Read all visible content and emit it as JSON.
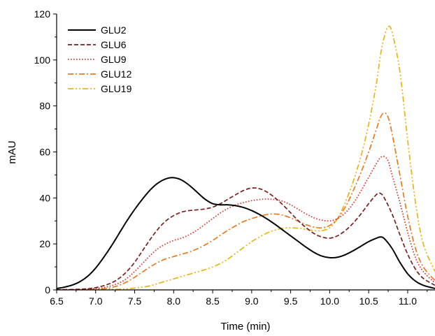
{
  "chart_data": {
    "type": "line",
    "xlabel": "Time (min)",
    "ylabel": "mAU",
    "xlim": [
      6.5,
      11.35
    ],
    "ylim": [
      0,
      120
    ],
    "xticks": [
      "6.5",
      "7.0",
      "7.5",
      "8.0",
      "8.5",
      "9.0",
      "9.5",
      "10.0",
      "10.5",
      "11.0"
    ],
    "yticks": [
      "0",
      "20",
      "40",
      "60",
      "80",
      "100",
      "120"
    ],
    "legend_position": "top-left",
    "grid": false,
    "series": [
      {
        "name": "GLU2",
        "color": "#000000",
        "dash": "solid",
        "points": [
          [
            6.5,
            0.6
          ],
          [
            6.6,
            1.2
          ],
          [
            6.7,
            2.1
          ],
          [
            6.8,
            3.6
          ],
          [
            6.9,
            6.0
          ],
          [
            7.0,
            9.5
          ],
          [
            7.1,
            14.0
          ],
          [
            7.2,
            19.0
          ],
          [
            7.3,
            24.5
          ],
          [
            7.4,
            30.0
          ],
          [
            7.5,
            35.0
          ],
          [
            7.6,
            39.5
          ],
          [
            7.7,
            43.5
          ],
          [
            7.8,
            46.5
          ],
          [
            7.9,
            48.3
          ],
          [
            8.0,
            48.8
          ],
          [
            8.1,
            47.8
          ],
          [
            8.2,
            45.5
          ],
          [
            8.3,
            42.5
          ],
          [
            8.4,
            39.5
          ],
          [
            8.5,
            37.5
          ],
          [
            8.6,
            37.0
          ],
          [
            8.7,
            37.0
          ],
          [
            8.8,
            36.6
          ],
          [
            8.9,
            35.8
          ],
          [
            9.0,
            34.5
          ],
          [
            9.1,
            32.8
          ],
          [
            9.2,
            30.8
          ],
          [
            9.3,
            28.5
          ],
          [
            9.4,
            26.0
          ],
          [
            9.5,
            23.5
          ],
          [
            9.6,
            21.0
          ],
          [
            9.7,
            18.5
          ],
          [
            9.8,
            16.3
          ],
          [
            9.9,
            14.7
          ],
          [
            10.0,
            14.0
          ],
          [
            10.1,
            14.2
          ],
          [
            10.2,
            15.3
          ],
          [
            10.3,
            17.0
          ],
          [
            10.4,
            19.0
          ],
          [
            10.5,
            21.0
          ],
          [
            10.6,
            22.5
          ],
          [
            10.65,
            23.0
          ],
          [
            10.7,
            22.3
          ],
          [
            10.8,
            18.0
          ],
          [
            10.9,
            12.0
          ],
          [
            11.0,
            7.0
          ],
          [
            11.1,
            3.8
          ],
          [
            11.2,
            2.0
          ],
          [
            11.35,
            0.6
          ]
        ]
      },
      {
        "name": "GLU6",
        "color": "#7b1f1f",
        "dash": "dash",
        "points": [
          [
            6.5,
            0.1
          ],
          [
            6.7,
            0.2
          ],
          [
            6.9,
            0.5
          ],
          [
            7.0,
            1.0
          ],
          [
            7.1,
            1.8
          ],
          [
            7.2,
            3.0
          ],
          [
            7.3,
            5.0
          ],
          [
            7.4,
            8.0
          ],
          [
            7.5,
            12.0
          ],
          [
            7.6,
            17.0
          ],
          [
            7.7,
            22.0
          ],
          [
            7.8,
            26.5
          ],
          [
            7.9,
            30.0
          ],
          [
            8.0,
            32.3
          ],
          [
            8.1,
            33.8
          ],
          [
            8.2,
            34.5
          ],
          [
            8.3,
            34.8
          ],
          [
            8.4,
            35.2
          ],
          [
            8.5,
            36.0
          ],
          [
            8.6,
            37.5
          ],
          [
            8.7,
            39.5
          ],
          [
            8.8,
            41.5
          ],
          [
            8.9,
            43.3
          ],
          [
            9.0,
            44.3
          ],
          [
            9.1,
            44.0
          ],
          [
            9.2,
            42.5
          ],
          [
            9.3,
            40.0
          ],
          [
            9.4,
            37.0
          ],
          [
            9.5,
            33.5
          ],
          [
            9.6,
            30.0
          ],
          [
            9.7,
            27.0
          ],
          [
            9.8,
            24.5
          ],
          [
            9.9,
            23.0
          ],
          [
            10.0,
            22.5
          ],
          [
            10.1,
            23.5
          ],
          [
            10.2,
            25.8
          ],
          [
            10.3,
            29.0
          ],
          [
            10.4,
            33.0
          ],
          [
            10.5,
            37.5
          ],
          [
            10.6,
            41.5
          ],
          [
            10.65,
            42.0
          ],
          [
            10.7,
            40.0
          ],
          [
            10.8,
            33.0
          ],
          [
            10.9,
            24.0
          ],
          [
            11.0,
            15.5
          ],
          [
            11.1,
            9.0
          ],
          [
            11.2,
            5.0
          ],
          [
            11.35,
            2.0
          ]
        ]
      },
      {
        "name": "GLU9",
        "color": "#d2352b",
        "dash": "dot",
        "points": [
          [
            6.5,
            0.0
          ],
          [
            6.8,
            0.2
          ],
          [
            7.0,
            0.6
          ],
          [
            7.1,
            1.0
          ],
          [
            7.2,
            1.8
          ],
          [
            7.3,
            3.0
          ],
          [
            7.4,
            5.0
          ],
          [
            7.5,
            8.0
          ],
          [
            7.6,
            11.5
          ],
          [
            7.7,
            15.0
          ],
          [
            7.8,
            18.0
          ],
          [
            7.9,
            20.0
          ],
          [
            8.0,
            21.5
          ],
          [
            8.1,
            22.5
          ],
          [
            8.2,
            24.0
          ],
          [
            8.3,
            26.0
          ],
          [
            8.4,
            28.5
          ],
          [
            8.5,
            31.0
          ],
          [
            8.6,
            33.5
          ],
          [
            8.7,
            35.5
          ],
          [
            8.8,
            37.0
          ],
          [
            8.9,
            38.0
          ],
          [
            9.0,
            38.8
          ],
          [
            9.1,
            39.3
          ],
          [
            9.2,
            39.5
          ],
          [
            9.3,
            39.3
          ],
          [
            9.4,
            38.5
          ],
          [
            9.5,
            37.0
          ],
          [
            9.6,
            35.0
          ],
          [
            9.7,
            33.0
          ],
          [
            9.8,
            31.3
          ],
          [
            9.9,
            30.3
          ],
          [
            10.0,
            30.0
          ],
          [
            10.1,
            31.0
          ],
          [
            10.2,
            33.5
          ],
          [
            10.3,
            37.5
          ],
          [
            10.4,
            43.0
          ],
          [
            10.5,
            49.0
          ],
          [
            10.6,
            55.0
          ],
          [
            10.65,
            57.5
          ],
          [
            10.7,
            58.0
          ],
          [
            10.75,
            56.0
          ],
          [
            10.8,
            50.0
          ],
          [
            10.9,
            38.0
          ],
          [
            11.0,
            25.0
          ],
          [
            11.1,
            14.0
          ],
          [
            11.2,
            8.0
          ],
          [
            11.35,
            3.0
          ]
        ]
      },
      {
        "name": "GLU12",
        "color": "#eb7a1e",
        "dash": "dashdot",
        "points": [
          [
            6.5,
            0.0
          ],
          [
            6.9,
            0.1
          ],
          [
            7.1,
            0.5
          ],
          [
            7.2,
            1.0
          ],
          [
            7.3,
            2.0
          ],
          [
            7.4,
            3.5
          ],
          [
            7.5,
            5.5
          ],
          [
            7.6,
            7.8
          ],
          [
            7.7,
            10.0
          ],
          [
            7.8,
            12.0
          ],
          [
            7.9,
            13.5
          ],
          [
            8.0,
            14.5
          ],
          [
            8.1,
            15.5
          ],
          [
            8.2,
            16.5
          ],
          [
            8.3,
            17.8
          ],
          [
            8.4,
            19.5
          ],
          [
            8.5,
            21.5
          ],
          [
            8.6,
            23.8
          ],
          [
            8.7,
            26.0
          ],
          [
            8.8,
            28.0
          ],
          [
            8.9,
            29.8
          ],
          [
            9.0,
            31.0
          ],
          [
            9.1,
            32.0
          ],
          [
            9.2,
            32.8
          ],
          [
            9.3,
            33.0
          ],
          [
            9.4,
            32.5
          ],
          [
            9.5,
            31.3
          ],
          [
            9.6,
            29.8
          ],
          [
            9.7,
            28.3
          ],
          [
            9.8,
            27.3
          ],
          [
            9.9,
            27.0
          ],
          [
            10.0,
            28.0
          ],
          [
            10.1,
            31.0
          ],
          [
            10.2,
            36.0
          ],
          [
            10.3,
            43.0
          ],
          [
            10.4,
            51.0
          ],
          [
            10.5,
            60.0
          ],
          [
            10.6,
            70.0
          ],
          [
            10.65,
            75.0
          ],
          [
            10.7,
            77.0
          ],
          [
            10.75,
            75.0
          ],
          [
            10.8,
            68.0
          ],
          [
            10.9,
            50.0
          ],
          [
            11.0,
            32.0
          ],
          [
            11.1,
            18.0
          ],
          [
            11.2,
            10.0
          ],
          [
            11.35,
            4.0
          ]
        ]
      },
      {
        "name": "GLU19",
        "color": "#e8b417",
        "dash": "dashdotdot",
        "points": [
          [
            6.5,
            0.0
          ],
          [
            7.2,
            0.2
          ],
          [
            7.4,
            0.5
          ],
          [
            7.5,
            0.8
          ],
          [
            7.6,
            1.2
          ],
          [
            7.7,
            1.8
          ],
          [
            7.8,
            2.8
          ],
          [
            7.9,
            3.8
          ],
          [
            8.0,
            4.8
          ],
          [
            8.1,
            5.8
          ],
          [
            8.2,
            6.8
          ],
          [
            8.3,
            7.8
          ],
          [
            8.4,
            8.8
          ],
          [
            8.5,
            10.0
          ],
          [
            8.6,
            11.5
          ],
          [
            8.7,
            13.5
          ],
          [
            8.8,
            16.0
          ],
          [
            8.9,
            18.5
          ],
          [
            9.0,
            21.0
          ],
          [
            9.1,
            23.0
          ],
          [
            9.2,
            24.8
          ],
          [
            9.3,
            26.0
          ],
          [
            9.4,
            26.8
          ],
          [
            9.5,
            27.0
          ],
          [
            9.6,
            26.8
          ],
          [
            9.7,
            26.3
          ],
          [
            9.8,
            25.8
          ],
          [
            9.9,
            25.8
          ],
          [
            10.0,
            27.0
          ],
          [
            10.1,
            31.0
          ],
          [
            10.2,
            38.0
          ],
          [
            10.3,
            47.0
          ],
          [
            10.4,
            58.0
          ],
          [
            10.5,
            72.0
          ],
          [
            10.6,
            90.0
          ],
          [
            10.65,
            102.0
          ],
          [
            10.7,
            110.0
          ],
          [
            10.75,
            114.5
          ],
          [
            10.8,
            112.0
          ],
          [
            10.9,
            95.0
          ],
          [
            11.0,
            65.0
          ],
          [
            11.1,
            38.0
          ],
          [
            11.2,
            20.0
          ],
          [
            11.35,
            8.0
          ]
        ]
      }
    ]
  }
}
